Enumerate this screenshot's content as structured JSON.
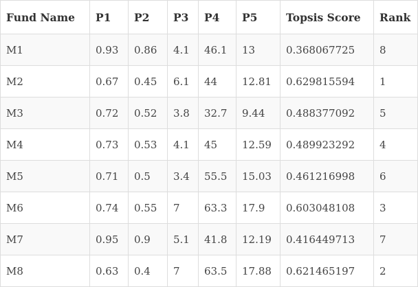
{
  "table": {
    "headers": [
      "Fund Name",
      "P1",
      "P2",
      "P3",
      "P4",
      "P5",
      "Topsis Score",
      "Rank"
    ],
    "rows": [
      [
        "M1",
        "0.93",
        "0.86",
        "4.1",
        "46.1",
        "13",
        "0.368067725",
        "8"
      ],
      [
        "M2",
        "0.67",
        "0.45",
        "6.1",
        "44",
        "12.81",
        "0.629815594",
        "1"
      ],
      [
        "M3",
        "0.72",
        "0.52",
        "3.8",
        "32.7",
        "9.44",
        "0.488377092",
        "5"
      ],
      [
        "M4",
        "0.73",
        "0.53",
        "4.1",
        "45",
        "12.59",
        "0.489923292",
        "4"
      ],
      [
        "M5",
        "0.71",
        "0.5",
        "3.4",
        "55.5",
        "15.03",
        "0.461216998",
        "6"
      ],
      [
        "M6",
        "0.74",
        "0.55",
        "7",
        "63.3",
        "17.9",
        "0.603048108",
        "3"
      ],
      [
        "M7",
        "0.95",
        "0.9",
        "5.1",
        "41.8",
        "12.19",
        "0.416449713",
        "7"
      ],
      [
        "M8",
        "0.63",
        "0.4",
        "7",
        "63.5",
        "17.88",
        "0.621465197",
        "2"
      ]
    ]
  }
}
